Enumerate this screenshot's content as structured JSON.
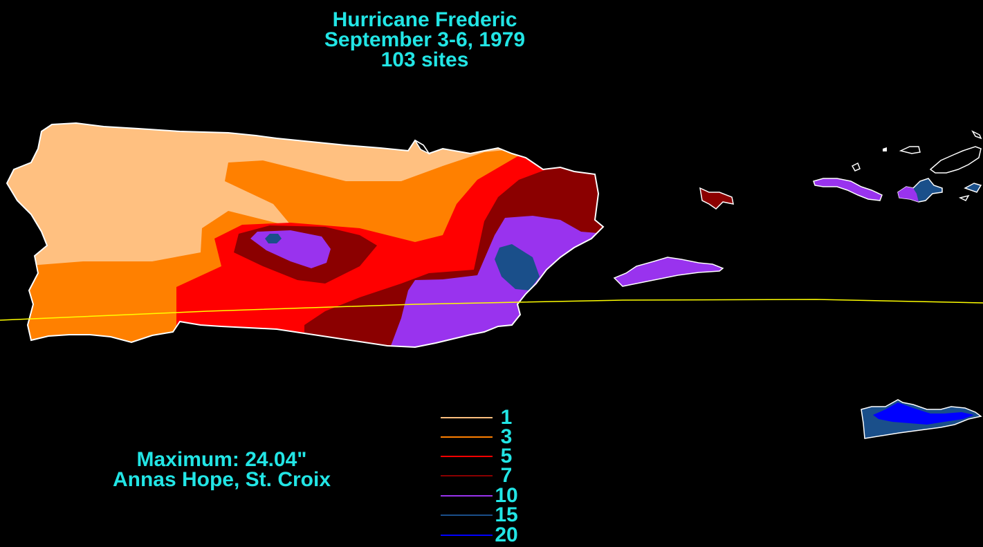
{
  "title": {
    "line1": "Hurricane Frederic",
    "line2": "September 3-6, 1979",
    "line3": "103 sites"
  },
  "maximum": {
    "line1": "Maximum:  24.04\"",
    "line2": "Annas Hope, St. Croix"
  },
  "legend": [
    {
      "value": "1",
      "color": "#FFC080"
    },
    {
      "value": "3",
      "color": "#FF8000"
    },
    {
      "value": "5",
      "color": "#FF0000"
    },
    {
      "value": "7",
      "color": "#8B0000"
    },
    {
      "value": "10",
      "color": "#9933EE"
    },
    {
      "value": "15",
      "color": "#1A4F8A"
    },
    {
      "value": "20",
      "color": "#0000FF"
    }
  ],
  "colors": {
    "background": "#000000",
    "text": "#22E5E5",
    "track": "#FFFF00",
    "coast": "#FFFFFF"
  }
}
